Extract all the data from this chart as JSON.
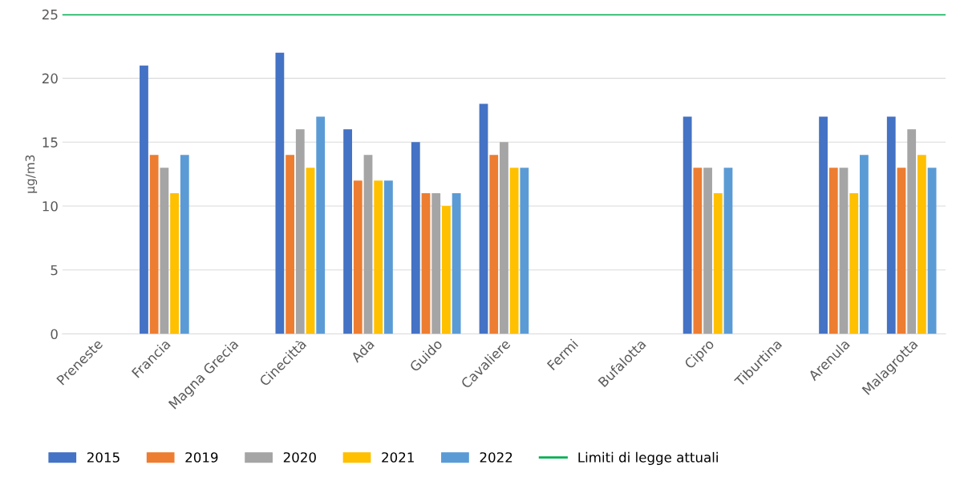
{
  "chart_data": {
    "type": "bar",
    "ylabel": "µg/m3",
    "categories": [
      "Preneste",
      "Francia",
      "Magna Grecia",
      "Cinecittà",
      "Ada",
      "Guido",
      "Cavaliere",
      "Fermi",
      "Bufalotta",
      "Cipro",
      "Tiburtina",
      "Arenula",
      "Malagrotta"
    ],
    "series": [
      {
        "name": "2015",
        "color": "#4472c4",
        "values": [
          null,
          21,
          null,
          22,
          16,
          15,
          18,
          null,
          null,
          17,
          null,
          17,
          17
        ]
      },
      {
        "name": "2019",
        "color": "#ed7d31",
        "values": [
          null,
          14,
          null,
          14,
          12,
          11,
          14,
          null,
          null,
          13,
          null,
          13,
          13
        ]
      },
      {
        "name": "2020",
        "color": "#a5a5a5",
        "values": [
          null,
          13,
          null,
          16,
          14,
          11,
          15,
          null,
          null,
          13,
          null,
          13,
          16
        ]
      },
      {
        "name": "2021",
        "color": "#ffc000",
        "values": [
          null,
          11,
          null,
          13,
          12,
          10,
          13,
          null,
          null,
          11,
          null,
          11,
          14
        ]
      },
      {
        "name": "2022",
        "color": "#5b9bd5",
        "values": [
          null,
          14,
          null,
          17,
          12,
          11,
          13,
          null,
          null,
          13,
          null,
          14,
          13
        ]
      }
    ],
    "ref_lines": [
      {
        "axis": "y",
        "value": 25,
        "label": "Limiti di legge attuali",
        "color": "#00b050"
      }
    ],
    "ylim": [
      0,
      25
    ],
    "yticks": [
      0,
      5,
      10,
      15,
      20,
      25
    ],
    "grid": "y",
    "legend": "bottom"
  }
}
